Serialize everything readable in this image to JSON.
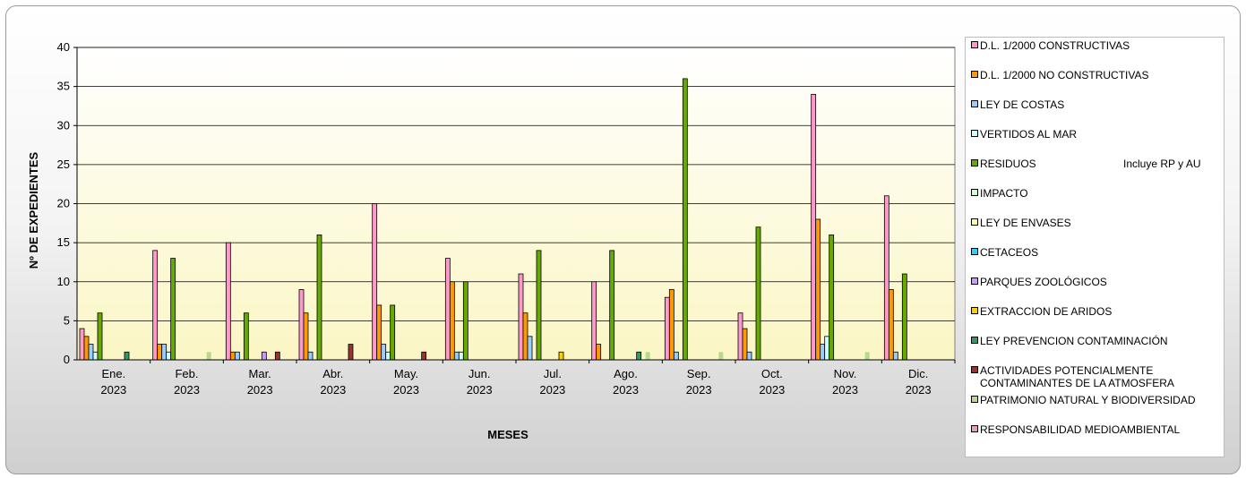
{
  "chart_data": {
    "type": "bar",
    "ylabel": "Nº DE EXPEDIENTES",
    "xlabel": "MESES",
    "ylim": [
      0,
      40
    ],
    "yticks": [
      0,
      5,
      10,
      15,
      20,
      25,
      30,
      35,
      40
    ],
    "grid": true,
    "legend_position": "right",
    "categories": [
      [
        "Ene.",
        "2023"
      ],
      [
        "Feb.",
        "2023"
      ],
      [
        "Mar.",
        "2023"
      ],
      [
        "Abr.",
        "2023"
      ],
      [
        "May.",
        "2023"
      ],
      [
        "Jun.",
        "2023"
      ],
      [
        "Jul.",
        "2023"
      ],
      [
        "Ago.",
        "2023"
      ],
      [
        "Sep.",
        "2023"
      ],
      [
        "Oct.",
        "2023"
      ],
      [
        "Nov.",
        "2023"
      ],
      [
        "Dic.",
        "2023"
      ]
    ],
    "series": [
      {
        "name": "D.L. 1/2000 CONSTRUCTIVAS",
        "color": "#ff99cc",
        "values": [
          4,
          14,
          15,
          9,
          20,
          13,
          11,
          10,
          8,
          6,
          34,
          21
        ]
      },
      {
        "name": "D.L. 1/2000 NO CONSTRUCTIVAS",
        "color": "#ff9900",
        "values": [
          3,
          2,
          1,
          6,
          7,
          10,
          6,
          2,
          9,
          4,
          18,
          9
        ]
      },
      {
        "name": "LEY DE COSTAS",
        "color": "#99ccff",
        "values": [
          2,
          2,
          1,
          1,
          2,
          1,
          3,
          0,
          1,
          1,
          2,
          1
        ]
      },
      {
        "name": "VERTIDOS AL MAR",
        "color": "#ccffff",
        "values": [
          1,
          1,
          0,
          0,
          1,
          1,
          0,
          0,
          0,
          0,
          3,
          0
        ]
      },
      {
        "name": "RESIDUOS",
        "note": "Incluye RP y AU",
        "color": "#66aa00",
        "values": [
          6,
          13,
          6,
          16,
          7,
          10,
          14,
          14,
          36,
          17,
          16,
          11
        ]
      },
      {
        "name": "IMPACTO",
        "color": "#ccffcc",
        "values": [
          0,
          0,
          0,
          0,
          0,
          0,
          0,
          0,
          0,
          0,
          0,
          0
        ]
      },
      {
        "name": "LEY DE ENVASES",
        "color": "#ffff99",
        "values": [
          0,
          0,
          0,
          0,
          0,
          0,
          0,
          0,
          0,
          0,
          0,
          0
        ]
      },
      {
        "name": "CETACEOS",
        "color": "#33ccff",
        "values": [
          0,
          0,
          0,
          0,
          0,
          0,
          0,
          0,
          0,
          0,
          0,
          0
        ]
      },
      {
        "name": "PARQUES ZOOLÓGICOS",
        "color": "#cc99ff",
        "values": [
          0,
          0,
          1,
          0,
          0,
          0,
          0,
          0,
          0,
          0,
          0,
          0
        ]
      },
      {
        "name": "EXTRACCION DE ARIDOS",
        "color": "#ffcc00",
        "values": [
          0,
          0,
          0,
          0,
          0,
          0,
          1,
          0,
          0,
          0,
          0,
          0
        ]
      },
      {
        "name": "LEY PREVENCION CONTAMINACIÓN",
        "color": "#339966",
        "values": [
          1,
          0,
          0,
          0,
          0,
          0,
          0,
          1,
          0,
          0,
          0,
          0
        ]
      },
      {
        "name": "ACTIVIDADES POTENCIALMENTE CONTAMINANTES DE LA ATMOSFERA",
        "name_lines": [
          "ACTIVIDADES POTENCIALMENTE",
          "CONTAMINANTES DE LA ATMOSFERA"
        ],
        "color": "#993333",
        "values": [
          0,
          0,
          1,
          2,
          1,
          0,
          0,
          0,
          0,
          0,
          0,
          0
        ]
      },
      {
        "name": "PATRIMONIO NATURAL Y BIODIVERSIDAD",
        "color": "#b8d98c",
        "values": [
          0,
          1,
          0,
          0,
          0,
          0,
          0,
          1,
          1,
          0,
          1,
          0
        ]
      },
      {
        "name": "RESPONSABILIDAD MEDIOAMBIENTAL",
        "color": "#e8a0b0",
        "values": [
          0,
          0,
          0,
          0,
          0,
          0,
          0,
          0,
          0,
          0,
          0,
          0
        ]
      }
    ]
  }
}
